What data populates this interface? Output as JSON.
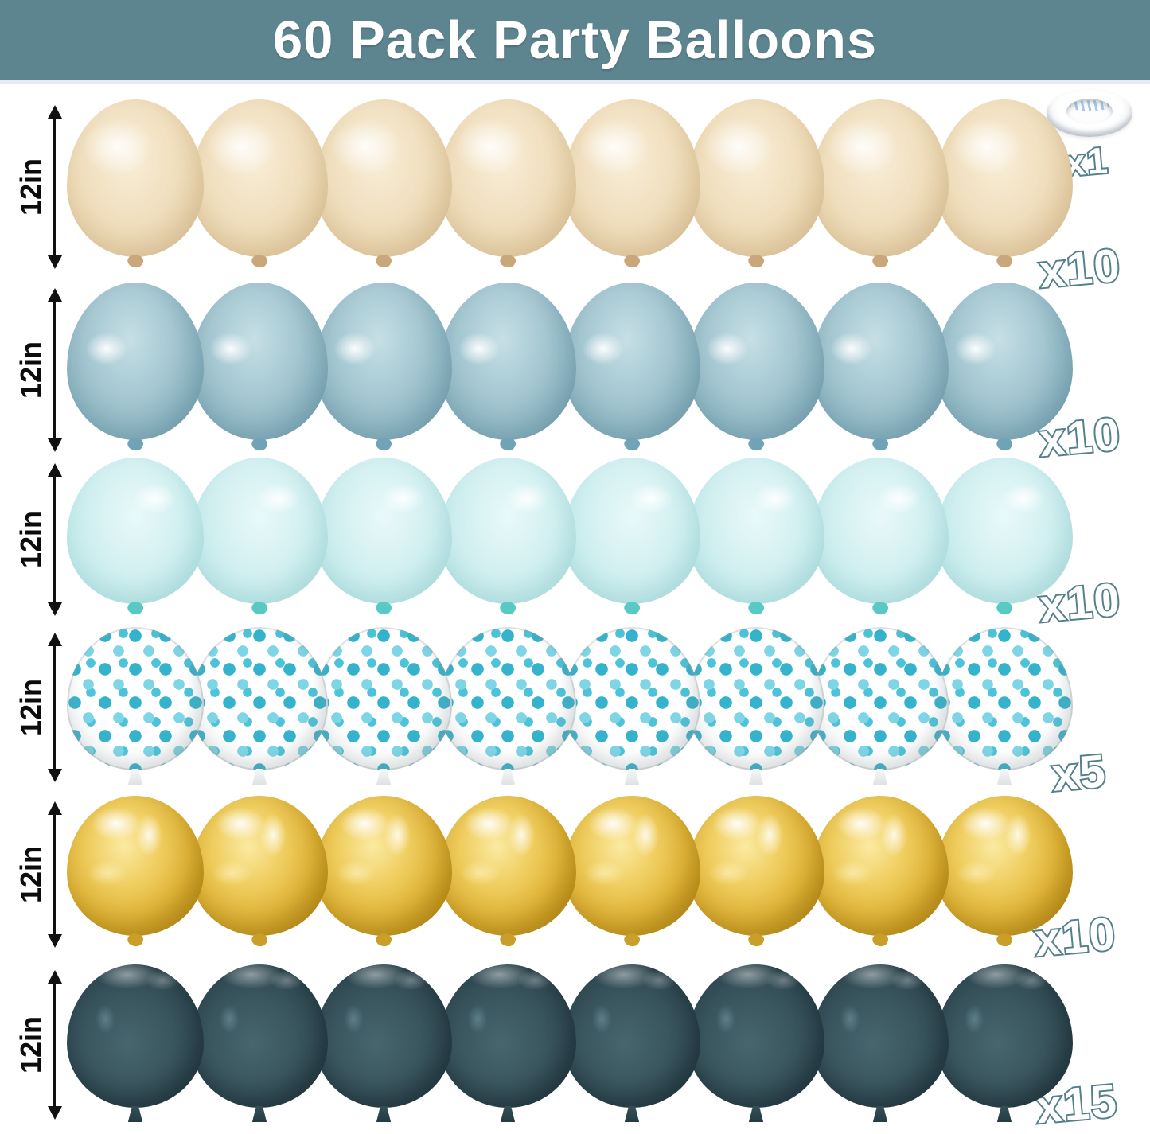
{
  "title": "60 Pack Party Balloons",
  "colors": {
    "banner_bg": "#5d8590",
    "banner_text": "#ffffff",
    "badge_fill": "#ffffff",
    "badge_outline": "#54808c",
    "size_label_color": "#0c0c0c",
    "background": "#ffffff"
  },
  "ribbon": {
    "name": "white-balloon-ribbon-roll",
    "count_label": "x1"
  },
  "rows": [
    {
      "name": "cream-balloons",
      "style": "cream",
      "knot": "k-curl",
      "size_label": "12in",
      "count_label": "x10",
      "balloons_shown": 8,
      "color_hex": "#eedcb9"
    },
    {
      "name": "dusty-blue-balloons",
      "style": "dusty-blue",
      "knot": "k-curl",
      "size_label": "12in",
      "count_label": "x10",
      "balloons_shown": 8,
      "color_hex": "#9dc0cc"
    },
    {
      "name": "light-blue-balloons",
      "style": "light-blue",
      "knot": "k-curl",
      "size_label": "12in",
      "count_label": "x10",
      "balloons_shown": 8,
      "color_hex": "#c8ecee"
    },
    {
      "name": "confetti-balloons",
      "style": "confetti",
      "knot": "k-wedge",
      "size_label": "12in",
      "count_label": "x5",
      "balloons_shown": 8,
      "color_hex": "#4cc3d8"
    },
    {
      "name": "gold-balloons",
      "style": "gold",
      "knot": "k-curl",
      "size_label": "12in",
      "count_label": "x10",
      "balloons_shown": 8,
      "color_hex": "#e0b437"
    },
    {
      "name": "dark-teal-balloons",
      "style": "dark-teal",
      "knot": "k-wedge",
      "size_label": "12in",
      "count_label": "x15",
      "balloons_shown": 8,
      "color_hex": "#2e4750"
    }
  ]
}
